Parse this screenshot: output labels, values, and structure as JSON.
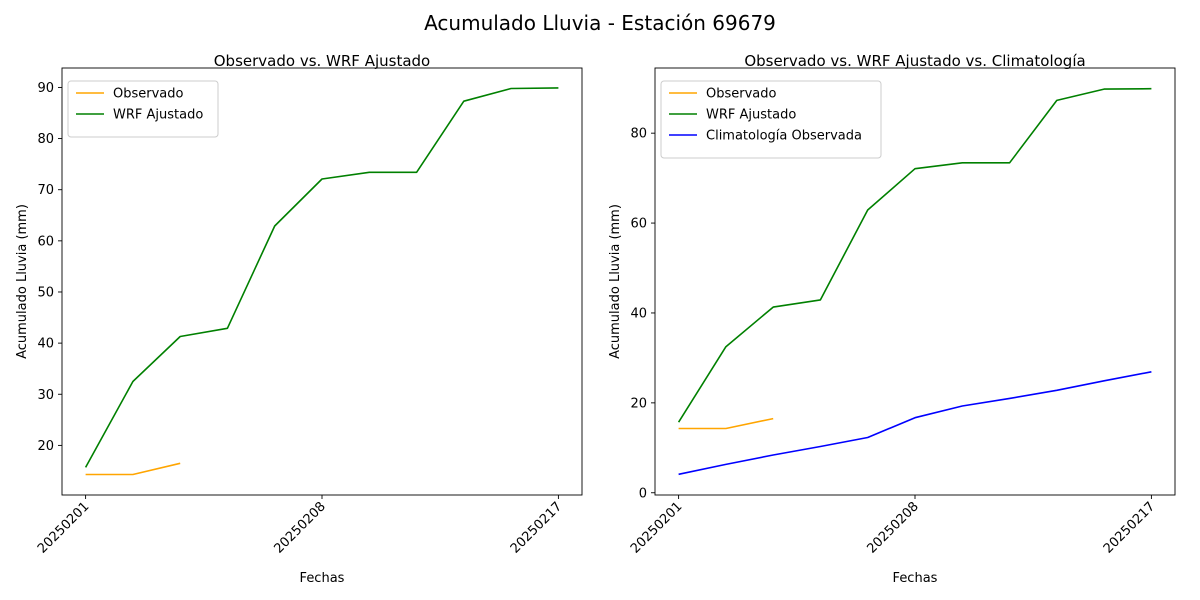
{
  "suptitle": "Acumulado Lluvia - Estación 69679",
  "colors": {
    "observado": "#ffa500",
    "wrf": "#008000",
    "clima": "#0000ff"
  },
  "chart_data": [
    {
      "type": "line",
      "title": "Observado vs. WRF Ajustado",
      "xlabel": "Fechas",
      "ylabel": "Acumulado Lluvia (mm)",
      "x_ticks": [
        "20250201",
        "20250208",
        "20250217"
      ],
      "ylim": [
        10.3,
        93.8
      ],
      "y_ticks": [
        20,
        30,
        40,
        50,
        60,
        70,
        80,
        90
      ],
      "legend_position": "top-left",
      "series": [
        {
          "name": "Observado",
          "color": "#ffa500",
          "points": [
            [
              0,
              14.3
            ],
            [
              1,
              14.3
            ],
            [
              2,
              16.5
            ]
          ]
        },
        {
          "name": "WRF Ajustado",
          "color": "#008000",
          "points": [
            [
              0,
              15.7
            ],
            [
              1,
              32.5
            ],
            [
              2,
              41.3
            ],
            [
              3,
              42.9
            ],
            [
              4,
              62.9
            ],
            [
              5,
              72.1
            ],
            [
              6,
              73.4
            ],
            [
              7,
              73.4
            ],
            [
              8,
              87.3
            ],
            [
              9,
              89.8
            ],
            [
              10,
              89.9
            ]
          ]
        }
      ]
    },
    {
      "type": "line",
      "title": "Observado vs. WRF Ajustado vs. Climatología",
      "xlabel": "Fechas",
      "ylabel": "Acumulado Lluvia (mm)",
      "x_ticks": [
        "20250201",
        "20250208",
        "20250217"
      ],
      "ylim": [
        -0.5,
        94.5
      ],
      "y_ticks": [
        0,
        20,
        40,
        60,
        80
      ],
      "legend_position": "top-left",
      "series": [
        {
          "name": "Observado",
          "color": "#ffa500",
          "points": [
            [
              0,
              14.3
            ],
            [
              1,
              14.3
            ],
            [
              2,
              16.5
            ]
          ]
        },
        {
          "name": "WRF Ajustado",
          "color": "#008000",
          "points": [
            [
              0,
              15.7
            ],
            [
              1,
              32.5
            ],
            [
              2,
              41.3
            ],
            [
              3,
              42.9
            ],
            [
              4,
              62.9
            ],
            [
              5,
              72.1
            ],
            [
              6,
              73.4
            ],
            [
              7,
              73.4
            ],
            [
              8,
              87.3
            ],
            [
              9,
              89.8
            ],
            [
              10,
              89.9
            ]
          ]
        },
        {
          "name": "Climatología Observada",
          "color": "#0000ff",
          "points": [
            [
              0,
              4.1
            ],
            [
              1,
              6.3
            ],
            [
              2,
              8.4
            ],
            [
              3,
              10.3
            ],
            [
              4,
              12.3
            ],
            [
              5,
              16.7
            ],
            [
              6,
              19.3
            ],
            [
              7,
              21.0
            ],
            [
              8,
              22.8
            ],
            [
              9,
              24.9
            ],
            [
              10,
              26.9
            ]
          ]
        }
      ]
    }
  ]
}
